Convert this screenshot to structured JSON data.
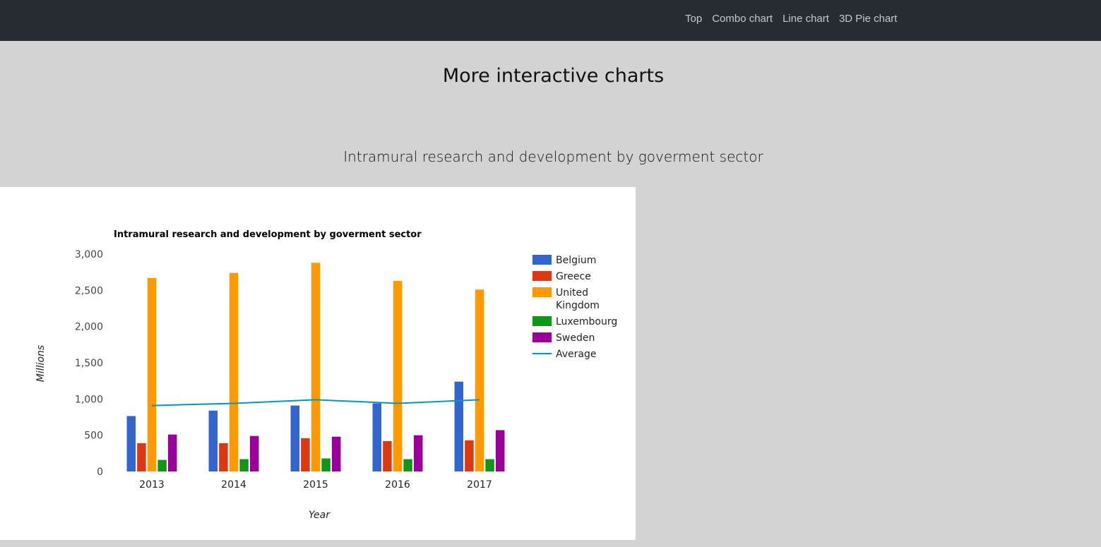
{
  "nav": {
    "links": [
      "Top",
      "Combo chart",
      "Line chart",
      "3D Pie chart"
    ]
  },
  "page_heading": "More interactive charts",
  "section_heading": "Intramural research and development by goverment sector",
  "chart_data": {
    "type": "bar",
    "title": "Intramural research and development by goverment sector",
    "xlabel": "Year",
    "ylabel": "Millions",
    "categories": [
      "2013",
      "2014",
      "2015",
      "2016",
      "2017"
    ],
    "ylim": [
      0,
      3000
    ],
    "yticks": [
      0,
      500,
      1000,
      1500,
      2000,
      2500,
      3000
    ],
    "ytick_labels": [
      "0",
      "500",
      "1,000",
      "1,500",
      "2,000",
      "2,500",
      "3,000"
    ],
    "series": [
      {
        "name": "Belgium",
        "color": "#3366cc",
        "values": [
          765,
          840,
          910,
          940,
          1240
        ]
      },
      {
        "name": "Greece",
        "color": "#dc3912",
        "values": [
          390,
          390,
          460,
          420,
          430
        ]
      },
      {
        "name": "United Kingdom",
        "color": "#ff9900",
        "values": [
          2670,
          2740,
          2880,
          2630,
          2510
        ]
      },
      {
        "name": "Luxembourg",
        "color": "#109618",
        "values": [
          160,
          170,
          180,
          170,
          170
        ]
      },
      {
        "name": "Sweden",
        "color": "#990099",
        "values": [
          510,
          490,
          480,
          500,
          570
        ]
      }
    ],
    "line_series": {
      "name": "Average",
      "color": "#0099c6",
      "values": [
        910,
        940,
        990,
        940,
        990
      ]
    },
    "legend_position": "right",
    "legend_labels": [
      "Belgium",
      "Greece",
      "United",
      "Kingdom",
      "Luxembourg",
      "Sweden",
      "Average"
    ],
    "grid": false
  }
}
